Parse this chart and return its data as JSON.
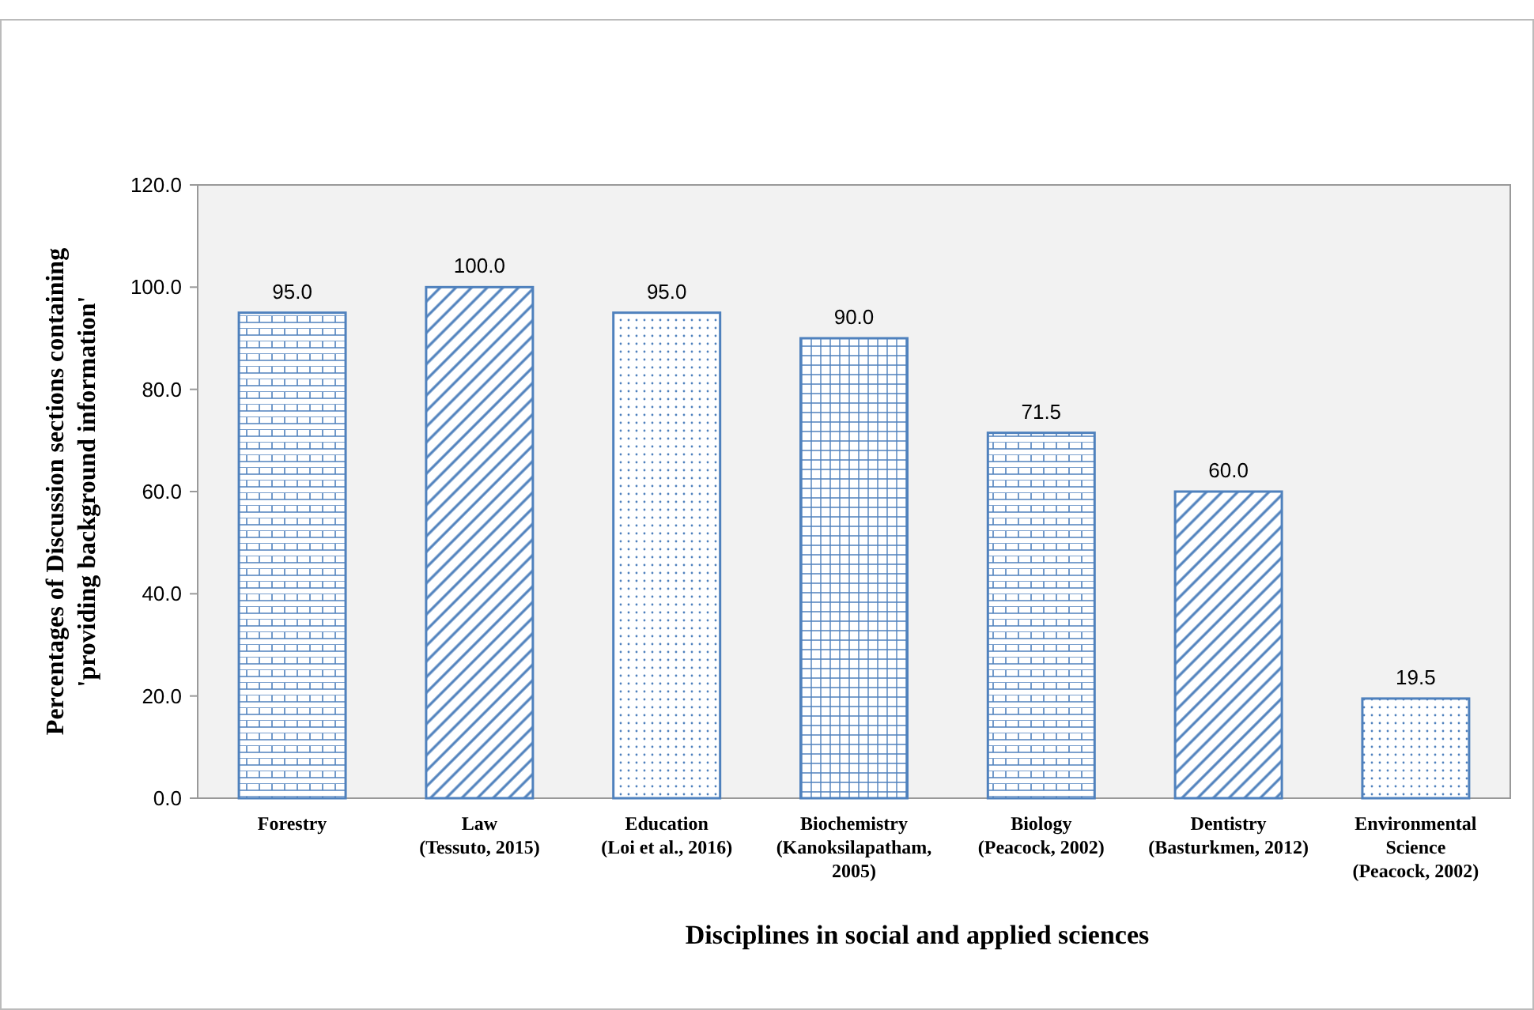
{
  "chart_data": {
    "type": "bar",
    "categories": [
      "Forestry",
      "Law\n(Tessuto, 2015)",
      "Education\n(Loi et al., 2016)",
      "Biochemistry\n(Kanoksilapatham,\n2005)",
      "Biology\n(Peacock, 2002)",
      "Dentistry\n(Basturkmen, 2012)",
      "Environmental\nScience\n(Peacock, 2002)"
    ],
    "values": [
      95.0,
      100.0,
      95.0,
      90.0,
      71.5,
      60.0,
      19.5
    ],
    "value_labels": [
      "95.0",
      "100.0",
      "95.0",
      "90.0",
      "71.5",
      "60.0",
      "19.5"
    ],
    "color": "#4f81bd",
    "xlabel": "Disciplines in social and applied sciences",
    "ylabel": "Percentages of Discussion  sections containing\n'providing background information'",
    "ylim": [
      0,
      120
    ],
    "yticks": [
      {
        "value": 0,
        "label": "0.0"
      },
      {
        "value": 20,
        "label": "20.0"
      },
      {
        "value": 40,
        "label": "40.0"
      },
      {
        "value": 60,
        "label": "60.0"
      },
      {
        "value": 80,
        "label": "80.0"
      },
      {
        "value": 100,
        "label": "100.0"
      },
      {
        "value": 120,
        "label": "120.0"
      }
    ],
    "grid": false
  }
}
